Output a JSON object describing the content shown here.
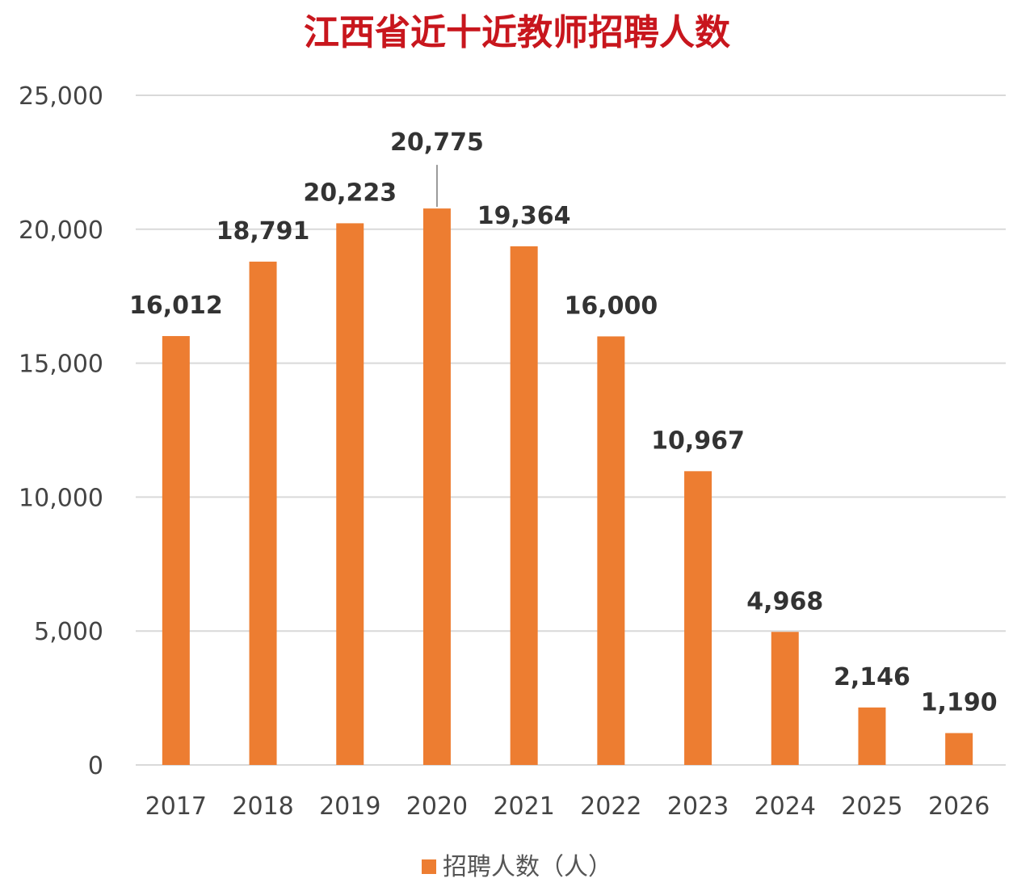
{
  "chart_data": {
    "type": "bar",
    "title": "江西省近十近教师招聘人数",
    "xlabel": "",
    "ylabel": "",
    "categories": [
      "2017",
      "2018",
      "2019",
      "2020",
      "2021",
      "2022",
      "2023",
      "2024",
      "2025",
      "2026"
    ],
    "series": [
      {
        "name": "招聘人数（人）",
        "values": [
          16012,
          18791,
          20223,
          20775,
          19364,
          16000,
          10967,
          4968,
          2146,
          1190
        ],
        "color": "#ed7d31"
      }
    ],
    "data_labels": [
      "16,012",
      "18,791",
      "20,223",
      "20,775",
      "19,364",
      "16,000",
      "10,967",
      "4,968",
      "2,146",
      "1,190"
    ],
    "ylim": [
      0,
      25000
    ],
    "yticks": [
      0,
      5000,
      10000,
      15000,
      20000,
      25000
    ],
    "ytick_labels": [
      "0",
      "5,000",
      "10,000",
      "15,000",
      "20,000",
      "25,000"
    ],
    "grid": true,
    "legend_position": "bottom",
    "colors": {
      "title": "#c8161d",
      "bar": "#ed7d31",
      "grid": "#d9d9d9"
    }
  }
}
